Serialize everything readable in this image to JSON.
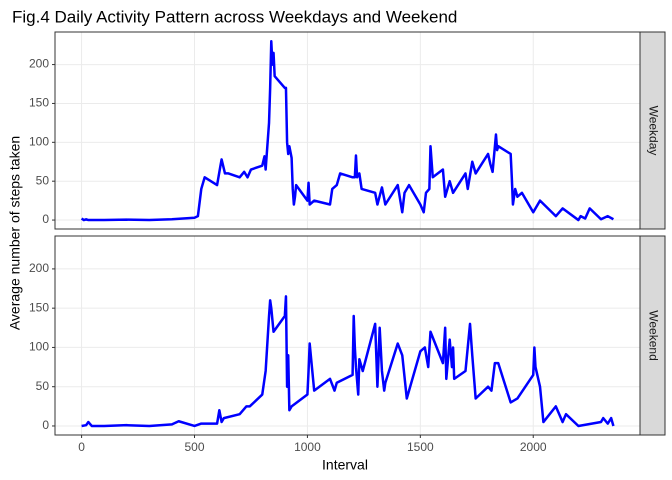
{
  "chart_data": {
    "type": "line",
    "title": "Fig.4 Daily Activity Pattern across Weekdays and Weekend",
    "x_label": "Interval",
    "y_label": "Average number of steps taken",
    "xlim": [
      -117.75,
      2472.75
    ],
    "xticks": [
      0,
      500,
      1000,
      1500,
      2000
    ],
    "ylim": [
      -11.5,
      241.9
    ],
    "yticks": [
      0,
      50,
      100,
      150,
      200
    ],
    "grid": true,
    "color": "#0000ff",
    "facets": [
      {
        "name": "Weekday",
        "x": [
          0,
          10,
          20,
          30,
          100,
          200,
          300,
          400,
          450,
          500,
          515,
          530,
          545,
          600,
          615,
          620,
          635,
          650,
          700,
          720,
          735,
          750,
          800,
          810,
          815,
          830,
          835,
          840,
          845,
          850,
          855,
          900,
          905,
          910,
          915,
          920,
          930,
          935,
          940,
          945,
          950,
          1000,
          1005,
          1010,
          1030,
          1100,
          1110,
          1130,
          1145,
          1200,
          1210,
          1215,
          1220,
          1230,
          1240,
          1300,
          1310,
          1330,
          1345,
          1400,
          1420,
          1430,
          1450,
          1500,
          1515,
          1525,
          1540,
          1545,
          1555,
          1600,
          1610,
          1630,
          1645,
          1700,
          1710,
          1730,
          1745,
          1800,
          1810,
          1820,
          1835,
          1840,
          1845,
          1900,
          1905,
          1910,
          1920,
          1930,
          1950,
          2000,
          2030,
          2100,
          2130,
          2200,
          2210,
          2230,
          2250,
          2300,
          2330,
          2355
        ],
        "values": [
          2,
          0,
          1,
          0,
          0,
          0.5,
          0,
          1,
          2,
          3,
          5,
          40,
          55,
          45,
          70,
          78,
          60,
          60,
          55,
          62,
          55,
          65,
          70,
          82,
          65,
          125,
          170,
          230,
          200,
          215,
          185,
          170,
          170,
          100,
          85,
          95,
          80,
          40,
          20,
          30,
          45,
          25,
          48,
          20,
          25,
          20,
          40,
          45,
          60,
          55,
          55,
          83,
          55,
          60,
          40,
          35,
          20,
          42,
          20,
          45,
          10,
          35,
          45,
          20,
          10,
          35,
          40,
          95,
          55,
          65,
          30,
          50,
          35,
          60,
          40,
          75,
          60,
          85,
          72,
          62,
          110,
          90,
          95,
          85,
          55,
          20,
          40,
          30,
          35,
          10,
          25,
          5,
          15,
          0,
          5,
          2,
          15,
          1,
          5,
          1
        ]
      },
      {
        "name": "Weekend",
        "x": [
          0,
          20,
          30,
          45,
          100,
          200,
          300,
          400,
          430,
          500,
          530,
          600,
          610,
          620,
          630,
          700,
          730,
          745,
          800,
          815,
          830,
          835,
          840,
          845,
          850,
          900,
          905,
          910,
          915,
          920,
          930,
          1000,
          1005,
          1010,
          1020,
          1030,
          1100,
          1120,
          1130,
          1200,
          1205,
          1210,
          1215,
          1225,
          1230,
          1245,
          1300,
          1310,
          1320,
          1330,
          1340,
          1345,
          1400,
          1420,
          1440,
          1500,
          1520,
          1535,
          1545,
          1600,
          1610,
          1615,
          1630,
          1640,
          1645,
          1650,
          1700,
          1720,
          1730,
          1745,
          1800,
          1815,
          1830,
          1845,
          1900,
          1930,
          2000,
          2005,
          2010,
          2030,
          2045,
          2100,
          2130,
          2145,
          2200,
          2300,
          2310,
          2330,
          2345,
          2355
        ],
        "values": [
          0,
          1,
          5,
          0,
          0,
          1,
          0,
          2,
          6,
          0,
          3,
          3,
          20,
          5,
          10,
          15,
          25,
          25,
          40,
          70,
          140,
          160,
          150,
          135,
          120,
          140,
          165,
          50,
          90,
          20,
          25,
          40,
          70,
          105,
          75,
          45,
          60,
          45,
          55,
          65,
          140,
          100,
          75,
          40,
          85,
          70,
          130,
          50,
          125,
          70,
          45,
          55,
          105,
          90,
          35,
          95,
          100,
          75,
          120,
          80,
          125,
          60,
          110,
          75,
          100,
          60,
          70,
          130,
          90,
          35,
          50,
          45,
          80,
          80,
          30,
          35,
          65,
          100,
          75,
          50,
          5,
          25,
          5,
          15,
          0,
          5,
          10,
          3,
          10,
          0
        ]
      }
    ]
  }
}
